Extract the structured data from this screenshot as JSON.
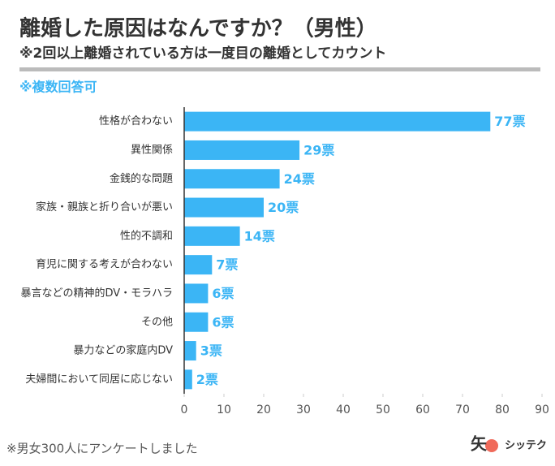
{
  "chart_data": {
    "type": "bar",
    "orientation": "horizontal",
    "title": "離婚した原因はなんですか？（男性）",
    "subtitle": "※2回以上離婚されている方は一度目の離婚としてカウント",
    "note": "※複数回答可",
    "footnote": "※男女300人にアンケートしました",
    "brand": {
      "mark": "矢",
      "name": "シッテク"
    },
    "categories": [
      "性格が合わない",
      "異性関係",
      "金銭的な問題",
      "家族・親族と折り合いが悪い",
      "性的不調和",
      "育児に関する考えが合わない",
      "暴言などの精神的DV・モラハラ",
      "その他",
      "暴力などの家庭内DV",
      "夫婦間において同居に応じない"
    ],
    "values": [
      77,
      29,
      24,
      20,
      14,
      7,
      6,
      6,
      3,
      2
    ],
    "value_labels": [
      "77票",
      "29票",
      "24票",
      "20票",
      "14票",
      "7票",
      "6票",
      "6票",
      "3票",
      "2票"
    ],
    "color": "#3bb5f5",
    "xlim": [
      0,
      90
    ],
    "xticks": [
      0,
      10,
      20,
      30,
      40,
      50,
      60,
      70,
      80,
      90
    ]
  }
}
